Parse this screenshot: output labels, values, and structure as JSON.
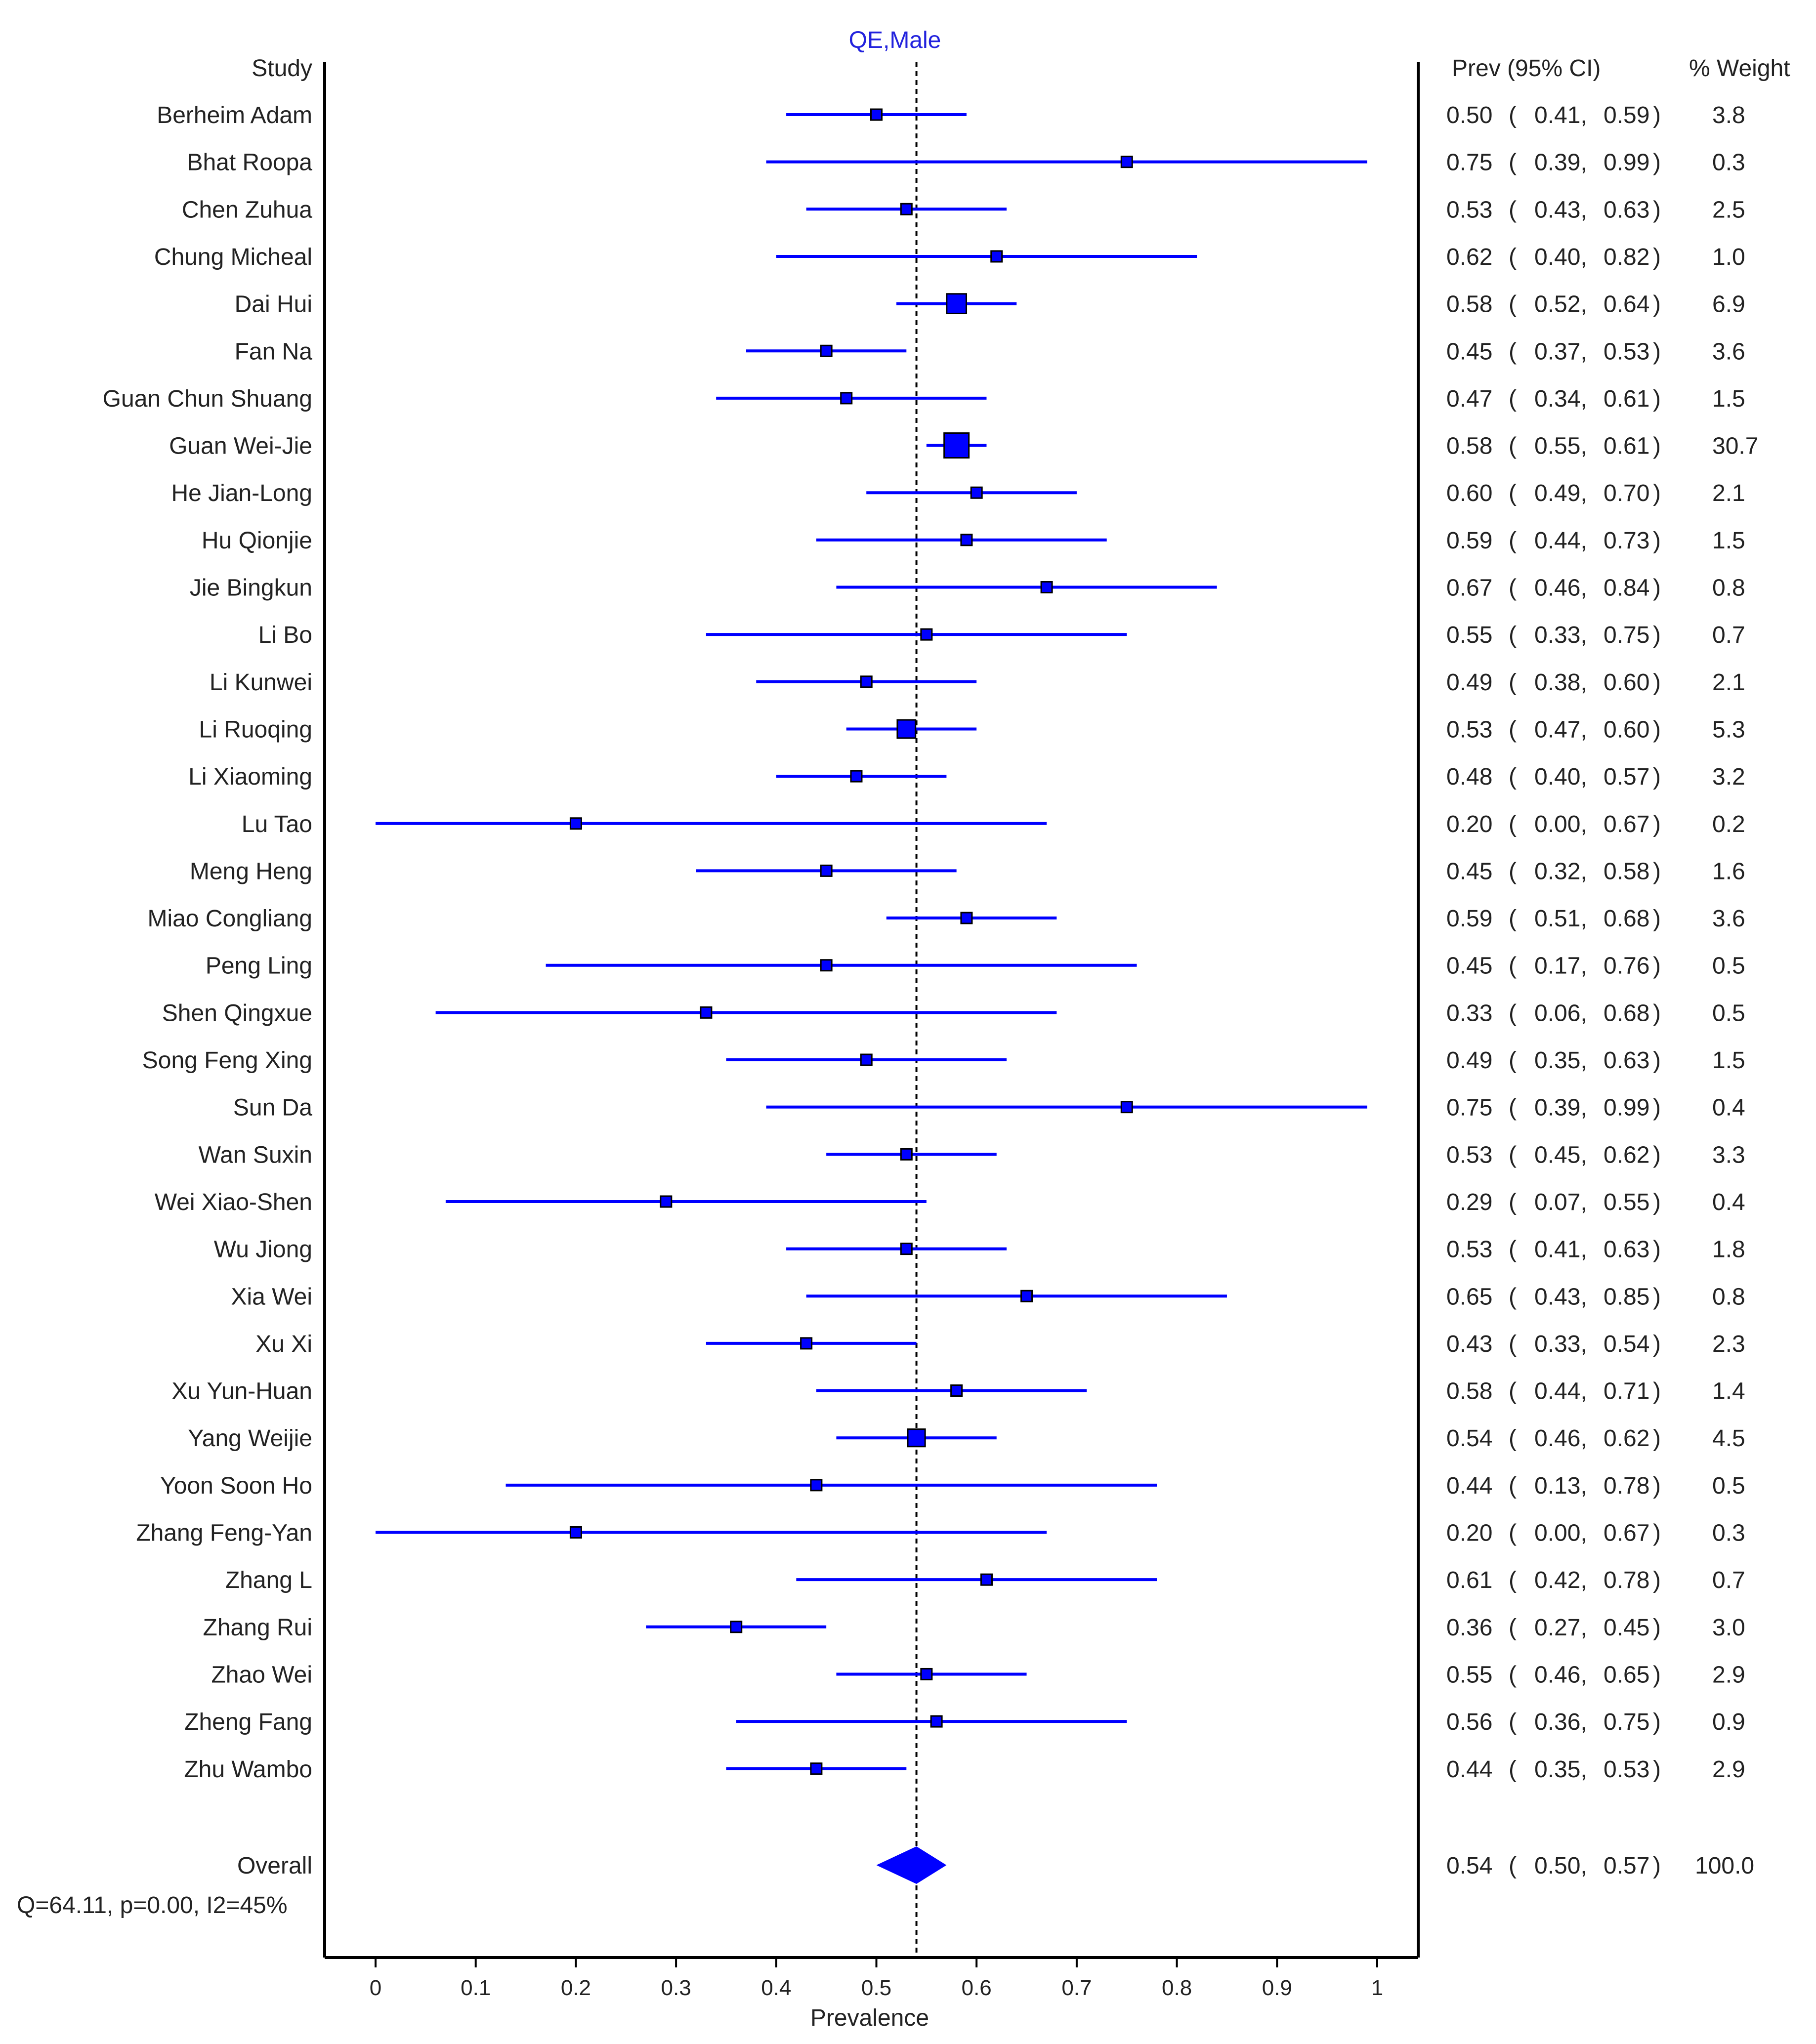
{
  "colors": {
    "series": "#0000FF",
    "axis": "#000000",
    "text": "#222222",
    "title": "#2222DD"
  },
  "chart_data": {
    "type": "forest",
    "title": "QE,Male",
    "xlabel": "Prevalence",
    "xlim": [
      0,
      1
    ],
    "xticks": [
      0,
      0.1,
      0.2,
      0.3,
      0.4,
      0.5,
      0.6,
      0.7,
      0.8,
      0.9,
      1
    ],
    "xtick_labels": [
      "0",
      "0.1",
      "0.2",
      "0.3",
      "0.4",
      "0.5",
      "0.6",
      "0.7",
      "0.8",
      "0.9",
      "1"
    ],
    "reference_line": 0.54,
    "headers": {
      "study": "Study",
      "ci": "Prev (95% CI)",
      "weight": "% Weight"
    },
    "studies": [
      {
        "name": "Berheim Adam",
        "prev": 0.5,
        "lo": 0.41,
        "hi": 0.59,
        "weight": 3.8,
        "prev_text": "0.50",
        "lo_text": "0.41",
        "hi_text": "0.59",
        "weight_text": "3.8"
      },
      {
        "name": "Bhat Roopa",
        "prev": 0.75,
        "lo": 0.39,
        "hi": 0.99,
        "weight": 0.3,
        "prev_text": "0.75",
        "lo_text": "0.39",
        "hi_text": "0.99",
        "weight_text": "0.3"
      },
      {
        "name": "Chen Zuhua",
        "prev": 0.53,
        "lo": 0.43,
        "hi": 0.63,
        "weight": 2.5,
        "prev_text": "0.53",
        "lo_text": "0.43",
        "hi_text": "0.63",
        "weight_text": "2.5"
      },
      {
        "name": "Chung Micheal",
        "prev": 0.62,
        "lo": 0.4,
        "hi": 0.82,
        "weight": 1.0,
        "prev_text": "0.62",
        "lo_text": "0.40",
        "hi_text": "0.82",
        "weight_text": "1.0"
      },
      {
        "name": "Dai Hui",
        "prev": 0.58,
        "lo": 0.52,
        "hi": 0.64,
        "weight": 6.9,
        "prev_text": "0.58",
        "lo_text": "0.52",
        "hi_text": "0.64",
        "weight_text": "6.9"
      },
      {
        "name": "Fan Na",
        "prev": 0.45,
        "lo": 0.37,
        "hi": 0.53,
        "weight": 3.6,
        "prev_text": "0.45",
        "lo_text": "0.37",
        "hi_text": "0.53",
        "weight_text": "3.6"
      },
      {
        "name": "Guan Chun Shuang",
        "prev": 0.47,
        "lo": 0.34,
        "hi": 0.61,
        "weight": 1.5,
        "prev_text": "0.47",
        "lo_text": "0.34",
        "hi_text": "0.61",
        "weight_text": "1.5"
      },
      {
        "name": "Guan Wei-Jie",
        "prev": 0.58,
        "lo": 0.55,
        "hi": 0.61,
        "weight": 30.7,
        "prev_text": "0.58",
        "lo_text": "0.55",
        "hi_text": "0.61",
        "weight_text": "30.7"
      },
      {
        "name": "He Jian-Long",
        "prev": 0.6,
        "lo": 0.49,
        "hi": 0.7,
        "weight": 2.1,
        "prev_text": "0.60",
        "lo_text": "0.49",
        "hi_text": "0.70",
        "weight_text": "2.1"
      },
      {
        "name": "Hu Qionjie",
        "prev": 0.59,
        "lo": 0.44,
        "hi": 0.73,
        "weight": 1.5,
        "prev_text": "0.59",
        "lo_text": "0.44",
        "hi_text": "0.73",
        "weight_text": "1.5"
      },
      {
        "name": "Jie Bingkun",
        "prev": 0.67,
        "lo": 0.46,
        "hi": 0.84,
        "weight": 0.8,
        "prev_text": "0.67",
        "lo_text": "0.46",
        "hi_text": "0.84",
        "weight_text": "0.8"
      },
      {
        "name": "Li Bo",
        "prev": 0.55,
        "lo": 0.33,
        "hi": 0.75,
        "weight": 0.7,
        "prev_text": "0.55",
        "lo_text": "0.33",
        "hi_text": "0.75",
        "weight_text": "0.7"
      },
      {
        "name": "Li Kunwei",
        "prev": 0.49,
        "lo": 0.38,
        "hi": 0.6,
        "weight": 2.1,
        "prev_text": "0.49",
        "lo_text": "0.38",
        "hi_text": "0.60",
        "weight_text": "2.1"
      },
      {
        "name": "Li Ruoqing",
        "prev": 0.53,
        "lo": 0.47,
        "hi": 0.6,
        "weight": 5.3,
        "prev_text": "0.53",
        "lo_text": "0.47",
        "hi_text": "0.60",
        "weight_text": "5.3"
      },
      {
        "name": "Li Xiaoming",
        "prev": 0.48,
        "lo": 0.4,
        "hi": 0.57,
        "weight": 3.2,
        "prev_text": "0.48",
        "lo_text": "0.40",
        "hi_text": "0.57",
        "weight_text": "3.2"
      },
      {
        "name": "Lu Tao",
        "prev": 0.2,
        "lo": 0.0,
        "hi": 0.67,
        "weight": 0.2,
        "prev_text": "0.20",
        "lo_text": "0.00",
        "hi_text": "0.67",
        "weight_text": "0.2"
      },
      {
        "name": "Meng Heng",
        "prev": 0.45,
        "lo": 0.32,
        "hi": 0.58,
        "weight": 1.6,
        "prev_text": "0.45",
        "lo_text": "0.32",
        "hi_text": "0.58",
        "weight_text": "1.6"
      },
      {
        "name": "Miao Congliang",
        "prev": 0.59,
        "lo": 0.51,
        "hi": 0.68,
        "weight": 3.6,
        "prev_text": "0.59",
        "lo_text": "0.51",
        "hi_text": "0.68",
        "weight_text": "3.6"
      },
      {
        "name": "Peng Ling",
        "prev": 0.45,
        "lo": 0.17,
        "hi": 0.76,
        "weight": 0.5,
        "prev_text": "0.45",
        "lo_text": "0.17",
        "hi_text": "0.76",
        "weight_text": "0.5"
      },
      {
        "name": "Shen Qingxue",
        "prev": 0.33,
        "lo": 0.06,
        "hi": 0.68,
        "weight": 0.5,
        "prev_text": "0.33",
        "lo_text": "0.06",
        "hi_text": "0.68",
        "weight_text": "0.5"
      },
      {
        "name": "Song Feng Xing",
        "prev": 0.49,
        "lo": 0.35,
        "hi": 0.63,
        "weight": 1.5,
        "prev_text": "0.49",
        "lo_text": "0.35",
        "hi_text": "0.63",
        "weight_text": "1.5"
      },
      {
        "name": "Sun Da",
        "prev": 0.75,
        "lo": 0.39,
        "hi": 0.99,
        "weight": 0.4,
        "prev_text": "0.75",
        "lo_text": "0.39",
        "hi_text": "0.99",
        "weight_text": "0.4"
      },
      {
        "name": "Wan Suxin",
        "prev": 0.53,
        "lo": 0.45,
        "hi": 0.62,
        "weight": 3.3,
        "prev_text": "0.53",
        "lo_text": "0.45",
        "hi_text": "0.62",
        "weight_text": "3.3"
      },
      {
        "name": "Wei Xiao-Shen",
        "prev": 0.29,
        "lo": 0.07,
        "hi": 0.55,
        "weight": 0.4,
        "prev_text": "0.29",
        "lo_text": "0.07",
        "hi_text": "0.55",
        "weight_text": "0.4"
      },
      {
        "name": "Wu Jiong",
        "prev": 0.53,
        "lo": 0.41,
        "hi": 0.63,
        "weight": 1.8,
        "prev_text": "0.53",
        "lo_text": "0.41",
        "hi_text": "0.63",
        "weight_text": "1.8"
      },
      {
        "name": "Xia Wei",
        "prev": 0.65,
        "lo": 0.43,
        "hi": 0.85,
        "weight": 0.8,
        "prev_text": "0.65",
        "lo_text": "0.43",
        "hi_text": "0.85",
        "weight_text": "0.8"
      },
      {
        "name": "Xu Xi",
        "prev": 0.43,
        "lo": 0.33,
        "hi": 0.54,
        "weight": 2.3,
        "prev_text": "0.43",
        "lo_text": "0.33",
        "hi_text": "0.54",
        "weight_text": "2.3"
      },
      {
        "name": "Xu Yun-Huan",
        "prev": 0.58,
        "lo": 0.44,
        "hi": 0.71,
        "weight": 1.4,
        "prev_text": "0.58",
        "lo_text": "0.44",
        "hi_text": "0.71",
        "weight_text": "1.4"
      },
      {
        "name": "Yang Weijie",
        "prev": 0.54,
        "lo": 0.46,
        "hi": 0.62,
        "weight": 4.5,
        "prev_text": "0.54",
        "lo_text": "0.46",
        "hi_text": "0.62",
        "weight_text": "4.5"
      },
      {
        "name": "Yoon Soon Ho",
        "prev": 0.44,
        "lo": 0.13,
        "hi": 0.78,
        "weight": 0.5,
        "prev_text": "0.44",
        "lo_text": "0.13",
        "hi_text": "0.78",
        "weight_text": "0.5"
      },
      {
        "name": "Zhang Feng-Yan",
        "prev": 0.2,
        "lo": 0.0,
        "hi": 0.67,
        "weight": 0.3,
        "prev_text": "0.20",
        "lo_text": "0.00",
        "hi_text": "0.67",
        "weight_text": "0.3"
      },
      {
        "name": "Zhang L",
        "prev": 0.61,
        "lo": 0.42,
        "hi": 0.78,
        "weight": 0.7,
        "prev_text": "0.61",
        "lo_text": "0.42",
        "hi_text": "0.78",
        "weight_text": "0.7"
      },
      {
        "name": "Zhang Rui",
        "prev": 0.36,
        "lo": 0.27,
        "hi": 0.45,
        "weight": 3.0,
        "prev_text": "0.36",
        "lo_text": "0.27",
        "hi_text": "0.45",
        "weight_text": "3.0"
      },
      {
        "name": "Zhao Wei",
        "prev": 0.55,
        "lo": 0.46,
        "hi": 0.65,
        "weight": 2.9,
        "prev_text": "0.55",
        "lo_text": "0.46",
        "hi_text": "0.65",
        "weight_text": "2.9"
      },
      {
        "name": "Zheng Fang",
        "prev": 0.56,
        "lo": 0.36,
        "hi": 0.75,
        "weight": 0.9,
        "prev_text": "0.56",
        "lo_text": "0.36",
        "hi_text": "0.75",
        "weight_text": "0.9"
      },
      {
        "name": "Zhu Wambo",
        "prev": 0.44,
        "lo": 0.35,
        "hi": 0.53,
        "weight": 2.9,
        "prev_text": "0.44",
        "lo_text": "0.35",
        "hi_text": "0.53",
        "weight_text": "2.9"
      }
    ],
    "overall": {
      "name": "Overall",
      "prev": 0.54,
      "lo": 0.5,
      "hi": 0.57,
      "weight": 100.0,
      "prev_text": "0.54",
      "lo_text": "0.50",
      "hi_text": "0.57",
      "weight_text": "100.0"
    },
    "heterogeneity": "Q=64.11, p=0.00, I2=45%"
  }
}
